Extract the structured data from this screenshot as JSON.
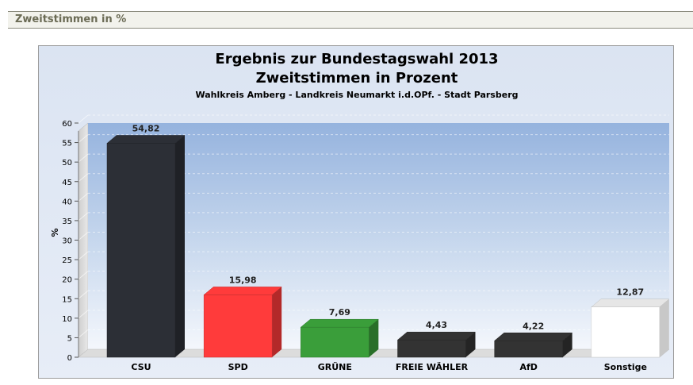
{
  "header": {
    "title": "Zweitstimmen in %"
  },
  "chart_data": {
    "type": "bar",
    "title": "Ergebnis zur Bundestagswahl 2013",
    "subtitle": "Zweitstimmen in Prozent",
    "subsubtitle": "Wahlkreis Amberg - Landkreis Neumarkt i.d.OPf. - Stadt Parsberg",
    "ylabel": "%",
    "xlabel": "",
    "ylim": [
      0,
      60
    ],
    "yticks": [
      0,
      5,
      10,
      15,
      20,
      25,
      30,
      35,
      40,
      45,
      50,
      55,
      60
    ],
    "grid": true,
    "categories": [
      "CSU",
      "SPD",
      "GRÜNE",
      "FREIE WÄHLER",
      "AfD",
      "Sonstige"
    ],
    "values": [
      54.82,
      15.98,
      7.69,
      4.43,
      4.22,
      12.87
    ],
    "value_labels": [
      "54,82",
      "15,98",
      "7,69",
      "4,43",
      "4,22",
      "12,87"
    ],
    "colors": [
      "#2c2f36",
      "#ff3b3b",
      "#3a9e3a",
      "#333333",
      "#333333",
      "#ffffff"
    ]
  }
}
